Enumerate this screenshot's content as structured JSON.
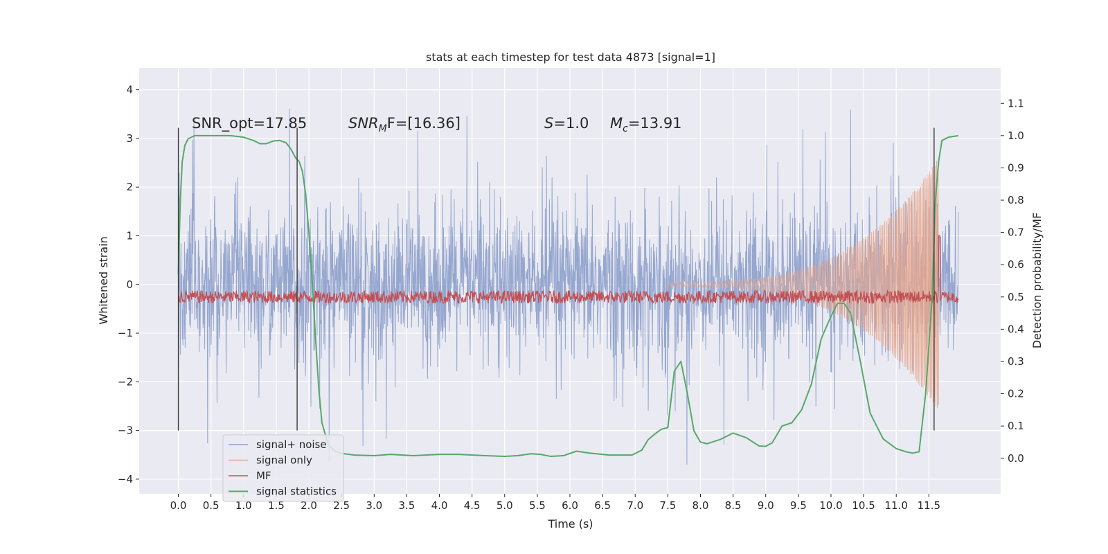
{
  "chart_data": {
    "type": "line",
    "title": "stats at each timestep for test data 4873 [signal=1]",
    "xlabel": "Time (s)",
    "ylabel": "Whitened strain",
    "y2label": "Detection probability/MF",
    "xlim": [
      -0.6,
      12.6
    ],
    "ylim": [
      -4.3,
      4.45
    ],
    "y2lim": [
      -0.11,
      1.21
    ],
    "xticks": [
      0.0,
      0.5,
      1.0,
      1.5,
      2.0,
      2.5,
      3.0,
      3.5,
      4.0,
      4.5,
      5.0,
      5.5,
      6.0,
      6.5,
      7.0,
      7.5,
      8.0,
      8.5,
      9.0,
      9.5,
      10.0,
      10.5,
      11.0,
      11.5
    ],
    "xtick_labels": [
      "0.0",
      "0.5",
      "1.0",
      "1.5",
      "2.0",
      "2.5",
      "3.0",
      "3.5",
      "4.0",
      "4.5",
      "5.0",
      "5.5",
      "6.0",
      "6.5",
      "7.0",
      "7.5",
      "8.0",
      "8.5",
      "9.0",
      "9.5",
      "10.0",
      "10.5",
      "11.0",
      "11.5"
    ],
    "yticks": [
      4,
      3,
      2,
      1,
      0,
      -1,
      -2,
      -3,
      -4
    ],
    "ytick_labels": [
      "4",
      "3",
      "2",
      "1",
      "0",
      "−1",
      "−2",
      "−3",
      "−4"
    ],
    "y2ticks": [
      1.1,
      1.0,
      0.9,
      0.8,
      0.7,
      0.6,
      0.5,
      0.4,
      0.3,
      0.2,
      0.1,
      0.0
    ],
    "y2tick_labels": [
      "1.1",
      "1.0",
      "0.9",
      "0.8",
      "0.7",
      "0.6",
      "0.5",
      "0.4",
      "0.3",
      "0.2",
      "0.1",
      "0.0"
    ],
    "grid": true,
    "legend_position": "lower-left",
    "annotations": {
      "snr_opt": "SNR_opt=17.85",
      "snr_mf_prefix": "SNR",
      "snr_mf_sub": "M",
      "snr_mf_suffix": "F=[16.36]",
      "s_italic": "S",
      "s_value": "=1.0",
      "mc_italic": "M",
      "mc_sub": "c",
      "mc_value": "=13.91"
    },
    "vlines": [
      {
        "x": 0.0,
        "y_range": [
          -3.0,
          3.22
        ]
      },
      {
        "x": 1.82,
        "y_range": [
          -3.0,
          3.22
        ]
      },
      {
        "x": 11.58,
        "y_range": [
          -3.0,
          3.22
        ]
      }
    ],
    "series": [
      {
        "name": "signal+ noise",
        "color": "#8da0cb",
        "axis": "left",
        "description_range": [
          0.0,
          11.95
        ],
        "envelope": {
          "typical": 1.35,
          "peak": 3.3
        }
      },
      {
        "name": "signal only",
        "color": "#e8a58a",
        "axis": "left",
        "chirp": {
          "start": 7.5,
          "end": 11.65,
          "amp_start": 0.05,
          "amp_end": 2.6
        }
      },
      {
        "name": "MF",
        "color": "#c44e52",
        "axis": "right",
        "baseline": 0.5,
        "jitter": 0.02,
        "spike": {
          "x": 11.66,
          "y": 0.69
        }
      },
      {
        "name": "signal statistics",
        "color": "#55a868",
        "axis": "right",
        "x": [
          0.0,
          0.03,
          0.06,
          0.1,
          0.15,
          0.25,
          0.4,
          0.6,
          0.8,
          1.0,
          1.15,
          1.25,
          1.35,
          1.45,
          1.55,
          1.65,
          1.72,
          1.8,
          1.85,
          1.9,
          1.95,
          2.0,
          2.05,
          2.1,
          2.15,
          2.2,
          2.3,
          2.4,
          2.5,
          2.7,
          3.0,
          3.25,
          3.6,
          4.0,
          4.3,
          4.7,
          5.0,
          5.2,
          5.4,
          5.55,
          5.7,
          5.9,
          6.1,
          6.3,
          6.6,
          6.8,
          6.95,
          7.1,
          7.2,
          7.3,
          7.4,
          7.5,
          7.6,
          7.7,
          7.8,
          7.9,
          8.0,
          8.1,
          8.3,
          8.5,
          8.7,
          8.9,
          9.0,
          9.1,
          9.25,
          9.4,
          9.55,
          9.7,
          9.85,
          10.0,
          10.1,
          10.2,
          10.3,
          10.45,
          10.6,
          10.8,
          11.0,
          11.15,
          11.25,
          11.35,
          11.45,
          11.55,
          11.6,
          11.65,
          11.7,
          11.8,
          11.95
        ],
        "y": [
          0.57,
          0.8,
          0.92,
          0.97,
          0.99,
          1.0,
          1.0,
          1.0,
          1.0,
          0.995,
          0.985,
          0.975,
          0.975,
          0.983,
          0.985,
          0.978,
          0.96,
          0.93,
          0.92,
          0.89,
          0.82,
          0.7,
          0.55,
          0.38,
          0.22,
          0.11,
          0.04,
          0.022,
          0.015,
          0.01,
          0.008,
          0.012,
          0.008,
          0.012,
          0.012,
          0.008,
          0.006,
          0.008,
          0.014,
          0.012,
          0.006,
          0.008,
          0.022,
          0.016,
          0.01,
          0.01,
          0.01,
          0.025,
          0.058,
          0.075,
          0.09,
          0.095,
          0.27,
          0.3,
          0.2,
          0.085,
          0.05,
          0.045,
          0.058,
          0.078,
          0.064,
          0.038,
          0.037,
          0.048,
          0.1,
          0.11,
          0.15,
          0.23,
          0.37,
          0.44,
          0.48,
          0.48,
          0.45,
          0.3,
          0.14,
          0.06,
          0.03,
          0.02,
          0.016,
          0.02,
          0.2,
          0.5,
          0.8,
          0.92,
          0.985,
          0.995,
          1.0
        ]
      }
    ]
  }
}
